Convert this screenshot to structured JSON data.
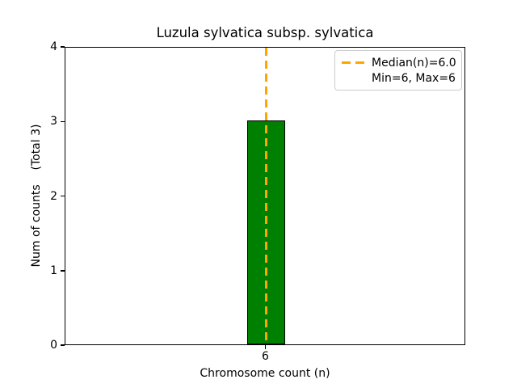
{
  "chart_data": {
    "type": "bar",
    "title": "Luzula sylvatica subsp. sylvatica",
    "xlabel": "Chromosome count (n)",
    "ylabel": "Num of counts    (Total 3)",
    "categories": [
      "6"
    ],
    "values": [
      3
    ],
    "total_counts": 3,
    "ylim": [
      0,
      4
    ],
    "yticks": [
      "0",
      "1",
      "2",
      "3",
      "4"
    ],
    "bar_color": "#008000",
    "bar_edge_color": "#000000",
    "median_line": {
      "value": 6.0,
      "color": "#FFA500",
      "style": "dashed",
      "orientation": "vertical"
    },
    "legend": {
      "position": "upper right",
      "entries": [
        "Median(n)=6.0",
        "Min=6, Max=6"
      ]
    },
    "grid": false
  }
}
